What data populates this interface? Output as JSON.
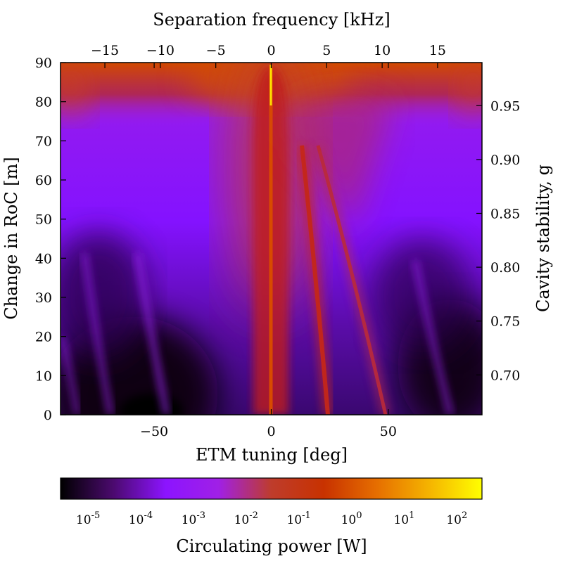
{
  "chart_data": {
    "type": "heatmap",
    "x_bottom": {
      "label": "ETM tuning [deg]",
      "range": [
        -90,
        90
      ],
      "ticks": [
        -50,
        0,
        50
      ],
      "tick_labels": [
        "−50",
        "0",
        "50"
      ]
    },
    "x_top": {
      "label": "Separation frequency [kHz]",
      "range": [
        -19,
        19
      ],
      "ticks": [
        -15,
        -10,
        -5,
        0,
        5,
        10,
        15
      ],
      "tick_labels": [
        "−15",
        "−10",
        "−5",
        "0",
        "5",
        "10",
        "15"
      ]
    },
    "y_left": {
      "label": "Change in RoC [m]",
      "range": [
        0,
        90
      ],
      "ticks": [
        0,
        10,
        20,
        30,
        40,
        50,
        60,
        70,
        80,
        90
      ],
      "tick_labels": [
        "0",
        "10",
        "20",
        "30",
        "40",
        "50",
        "60",
        "70",
        "80",
        "90"
      ]
    },
    "y_right": {
      "label": "Cavity stability, g",
      "range": [
        0.663,
        0.99
      ],
      "ticks": [
        0.7,
        0.75,
        0.8,
        0.85,
        0.9,
        0.95
      ],
      "tick_labels": [
        "0.70",
        "0.75",
        "0.80",
        "0.85",
        "0.90",
        "0.95"
      ]
    },
    "colorbar": {
      "label": "Circulating power [W]",
      "scale": "log",
      "range": [
        3e-06,
        300
      ],
      "ticks": [
        1e-05,
        0.0001,
        0.001,
        0.01,
        0.1,
        1,
        10,
        100
      ],
      "tick_bases": [
        "10",
        "10",
        "10",
        "10",
        "10",
        "10",
        "10",
        "10"
      ],
      "tick_exps": [
        "-5",
        "-4",
        "-3",
        "-2",
        "-1",
        "0",
        "1",
        "2"
      ],
      "colormap": [
        "#000000",
        "#4b0a6e",
        "#8c14ff",
        "#a020e6",
        "#be3c2c",
        "#c83200",
        "#e66e00",
        "#f5b400",
        "#ffff00"
      ]
    },
    "features": [
      {
        "name": "carrier resonance",
        "tuning_at_0m": 0,
        "tuning_at_90m": 0,
        "peak_power_W": 200
      },
      {
        "name": "first-order mode resonance",
        "tuning_at_0m": 25,
        "tuning_at_70m": 13
      },
      {
        "name": "second-order mode resonance",
        "tuning_at_0m": 48,
        "tuning_at_70m": 20
      },
      {
        "name": "high-order mode resonance",
        "tuning_at_0m": 75,
        "tuning_at_40m": 65
      },
      {
        "name": "high-order mode resonance",
        "tuning_at_0m": -68,
        "tuning_at_40m": -77
      },
      {
        "name": "high-order mode resonance",
        "tuning_at_0m": -46,
        "tuning_at_40m": -57
      }
    ]
  }
}
